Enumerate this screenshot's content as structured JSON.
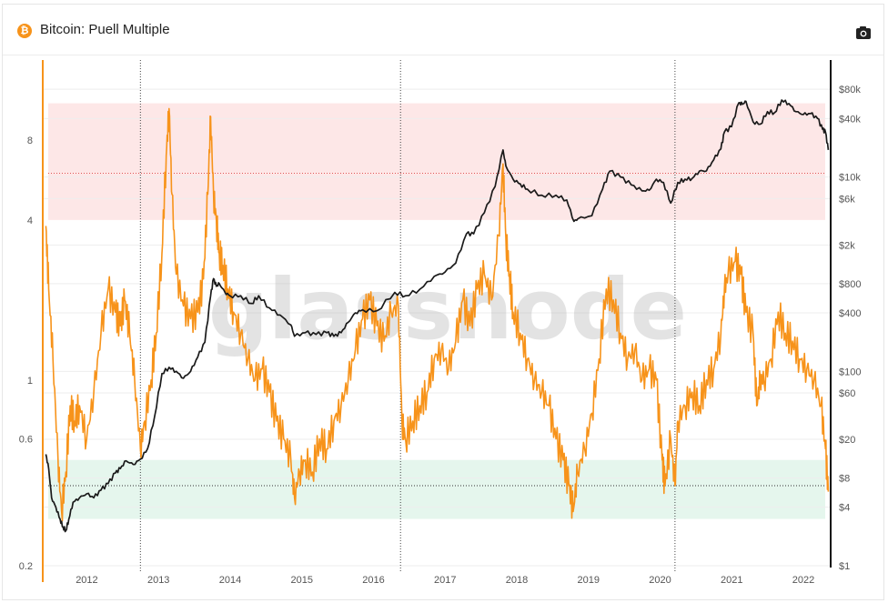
{
  "header": {
    "title": "Bitcoin: Puell Multiple",
    "logo_glyph": "₿",
    "camera_icon": "camera-icon"
  },
  "watermark": "glassnode",
  "colors": {
    "puell": "#f7931a",
    "price": "#1a1a1a",
    "red_band": "#fde3e3",
    "green_band": "#e1f4ea",
    "accent": "#f7931a"
  },
  "chart_data": {
    "type": "line",
    "title": "Bitcoin: Puell Multiple",
    "left_axis": {
      "scale": "log",
      "range": [
        0.2,
        16
      ],
      "ticks": [
        "0.2",
        "0.6",
        "1",
        "4",
        "8"
      ],
      "tick_values": [
        0.2,
        0.6,
        1,
        4,
        8
      ]
    },
    "right_axis": {
      "scale": "log",
      "range": [
        1,
        160000
      ],
      "ticks": [
        "$1",
        "$4",
        "$8",
        "$20",
        "$60",
        "$100",
        "$400",
        "$800",
        "$2k",
        "$6k",
        "$10k",
        "$40k",
        "$80k"
      ],
      "tick_values": [
        1,
        4,
        8,
        20,
        60,
        100,
        400,
        800,
        2000,
        6000,
        10000,
        40000,
        80000
      ]
    },
    "x_axis": {
      "range": [
        2011.55,
        2022.52
      ],
      "ticks": [
        "2012",
        "2013",
        "2014",
        "2015",
        "2016",
        "2017",
        "2018",
        "2019",
        "2020",
        "2021",
        "2022"
      ],
      "tick_values": [
        2012.0,
        2013.0,
        2014.0,
        2015.0,
        2016.0,
        2017.0,
        2018.0,
        2019.0,
        2020.0,
        2021.0,
        2022.0
      ]
    },
    "halvings": [
      2012.9,
      2016.53,
      2020.36
    ],
    "bands": [
      {
        "name": "red",
        "from": 4.0,
        "to": 11.0,
        "reference": 6.0
      },
      {
        "name": "green",
        "from": 0.3,
        "to": 0.5,
        "reference": 0.4
      }
    ],
    "grid": true,
    "series": [
      {
        "axis": "left",
        "x": [
          2011.58,
          2011.62,
          2011.68,
          2011.75,
          2011.8,
          2011.86,
          2011.92,
          2011.98,
          2012.05,
          2012.15,
          2012.25,
          2012.35,
          2012.45,
          2012.55,
          2012.62,
          2012.68,
          2012.75,
          2012.82,
          2012.9,
          2012.96,
          2013.05,
          2013.12,
          2013.2,
          2013.26,
          2013.3,
          2013.34,
          2013.4,
          2013.5,
          2013.6,
          2013.7,
          2013.78,
          2013.84,
          2013.88,
          2013.92,
          2013.96,
          2014.0,
          2014.05,
          2014.12,
          2014.2,
          2014.3,
          2014.4,
          2014.5,
          2014.6,
          2014.7,
          2014.8,
          2014.9,
          2015.0,
          2015.05,
          2015.12,
          2015.2,
          2015.3,
          2015.4,
          2015.5,
          2015.6,
          2015.7,
          2015.8,
          2015.9,
          2016.0,
          2016.1,
          2016.2,
          2016.3,
          2016.4,
          2016.5,
          2016.55,
          2016.6,
          2016.7,
          2016.8,
          2016.9,
          2017.0,
          2017.1,
          2017.2,
          2017.3,
          2017.4,
          2017.5,
          2017.6,
          2017.7,
          2017.8,
          2017.9,
          2017.96,
          2018.0,
          2018.05,
          2018.1,
          2018.2,
          2018.3,
          2018.4,
          2018.5,
          2018.6,
          2018.7,
          2018.8,
          2018.88,
          2018.94,
          2019.0,
          2019.1,
          2019.2,
          2019.3,
          2019.4,
          2019.5,
          2019.6,
          2019.7,
          2019.8,
          2019.9,
          2020.0,
          2020.1,
          2020.18,
          2020.22,
          2020.3,
          2020.36,
          2020.4,
          2020.5,
          2020.6,
          2020.7,
          2020.8,
          2020.9,
          2021.0,
          2021.05,
          2021.1,
          2021.2,
          2021.28,
          2021.35,
          2021.45,
          2021.5,
          2021.55,
          2021.6,
          2021.7,
          2021.8,
          2021.9,
          2022.0,
          2022.1,
          2022.2,
          2022.3,
          2022.4,
          2022.46,
          2022.5
        ],
        "y": [
          3.8,
          2.2,
          1.2,
          0.5,
          0.32,
          0.45,
          0.8,
          0.7,
          0.8,
          0.6,
          0.9,
          1.5,
          2.2,
          1.8,
          1.6,
          2.0,
          1.5,
          1.0,
          0.55,
          0.7,
          1.0,
          1.5,
          3.0,
          7.0,
          10.5,
          5.0,
          2.5,
          1.9,
          1.7,
          1.8,
          2.4,
          5.0,
          9.8,
          5.0,
          4.0,
          3.0,
          2.7,
          2.2,
          1.8,
          1.5,
          1.2,
          1.0,
          1.1,
          0.9,
          0.7,
          0.6,
          0.5,
          0.36,
          0.45,
          0.5,
          0.45,
          0.6,
          0.55,
          0.7,
          0.8,
          1.0,
          1.3,
          1.7,
          2.0,
          1.6,
          1.4,
          1.8,
          1.9,
          0.7,
          0.6,
          0.7,
          0.8,
          0.9,
          1.2,
          1.3,
          1.1,
          1.4,
          2.0,
          1.6,
          2.2,
          2.5,
          2.0,
          3.5,
          6.5,
          3.4,
          2.5,
          1.8,
          1.5,
          1.2,
          1.0,
          0.9,
          0.8,
          0.6,
          0.5,
          0.4,
          0.32,
          0.45,
          0.55,
          0.75,
          1.2,
          2.2,
          2.0,
          1.5,
          1.2,
          1.3,
          1.0,
          1.1,
          1.0,
          0.5,
          0.4,
          0.6,
          0.4,
          0.7,
          0.8,
          0.9,
          0.8,
          1.0,
          1.1,
          1.5,
          2.2,
          2.5,
          2.8,
          2.5,
          1.8,
          1.5,
          0.8,
          1.0,
          1.0,
          1.2,
          1.8,
          1.5,
          1.4,
          1.2,
          1.1,
          1.0,
          0.8,
          0.55,
          0.38
        ]
      },
      {
        "axis": "right",
        "x": [
          2011.58,
          2011.62,
          2011.66,
          2011.72,
          2011.78,
          2011.82,
          2011.86,
          2011.9,
          2011.96,
          2012.05,
          2012.15,
          2012.25,
          2012.35,
          2012.45,
          2012.55,
          2012.62,
          2012.7,
          2012.8,
          2012.9,
          2013.0,
          2013.1,
          2013.2,
          2013.3,
          2013.4,
          2013.5,
          2013.6,
          2013.7,
          2013.8,
          2013.88,
          2013.92,
          2013.96,
          2014.0,
          2014.08,
          2014.15,
          2014.3,
          2014.45,
          2014.55,
          2014.7,
          2014.85,
          2015.0,
          2015.05,
          2015.2,
          2015.35,
          2015.5,
          2015.6,
          2015.7,
          2015.8,
          2015.9,
          2016.0,
          2016.2,
          2016.45,
          2016.6,
          2016.8,
          2017.0,
          2017.15,
          2017.3,
          2017.45,
          2017.55,
          2017.7,
          2017.85,
          2017.96,
          2018.0,
          2018.1,
          2018.2,
          2018.3,
          2018.5,
          2018.7,
          2018.85,
          2018.95,
          2019.0,
          2019.2,
          2019.35,
          2019.45,
          2019.6,
          2019.75,
          2019.9,
          2020.0,
          2020.1,
          2020.2,
          2020.3,
          2020.4,
          2020.5,
          2020.6,
          2020.7,
          2020.8,
          2020.9,
          2021.0,
          2021.05,
          2021.15,
          2021.25,
          2021.3,
          2021.35,
          2021.45,
          2021.55,
          2021.65,
          2021.75,
          2021.85,
          2021.95,
          2022.05,
          2022.15,
          2022.25,
          2022.35,
          2022.42,
          2022.46,
          2022.5
        ],
        "y": [
          14,
          10,
          5,
          4,
          3,
          2.5,
          2.3,
          3,
          4.5,
          5,
          5.5,
          5,
          6,
          7,
          9,
          10,
          12,
          11,
          12.5,
          16,
          35,
          95,
          110,
          100,
          85,
          100,
          140,
          200,
          600,
          900,
          750,
          800,
          650,
          600,
          600,
          500,
          600,
          450,
          380,
          300,
          230,
          250,
          240,
          250,
          230,
          250,
          320,
          400,
          430,
          420,
          650,
          600,
          700,
          950,
          1050,
          1300,
          2600,
          2600,
          4300,
          8000,
          19000,
          13000,
          9500,
          8500,
          7500,
          6500,
          6500,
          5800,
          3500,
          3700,
          4000,
          7500,
          11500,
          10000,
          8300,
          7200,
          7300,
          9500,
          8800,
          5400,
          8800,
          9500,
          9700,
          11500,
          11600,
          15000,
          19500,
          29000,
          33000,
          58000,
          56000,
          60000,
          37000,
          35000,
          47000,
          46000,
          62000,
          57000,
          47000,
          44000,
          45000,
          40000,
          31000,
          29000,
          19000
        ]
      }
    ]
  }
}
